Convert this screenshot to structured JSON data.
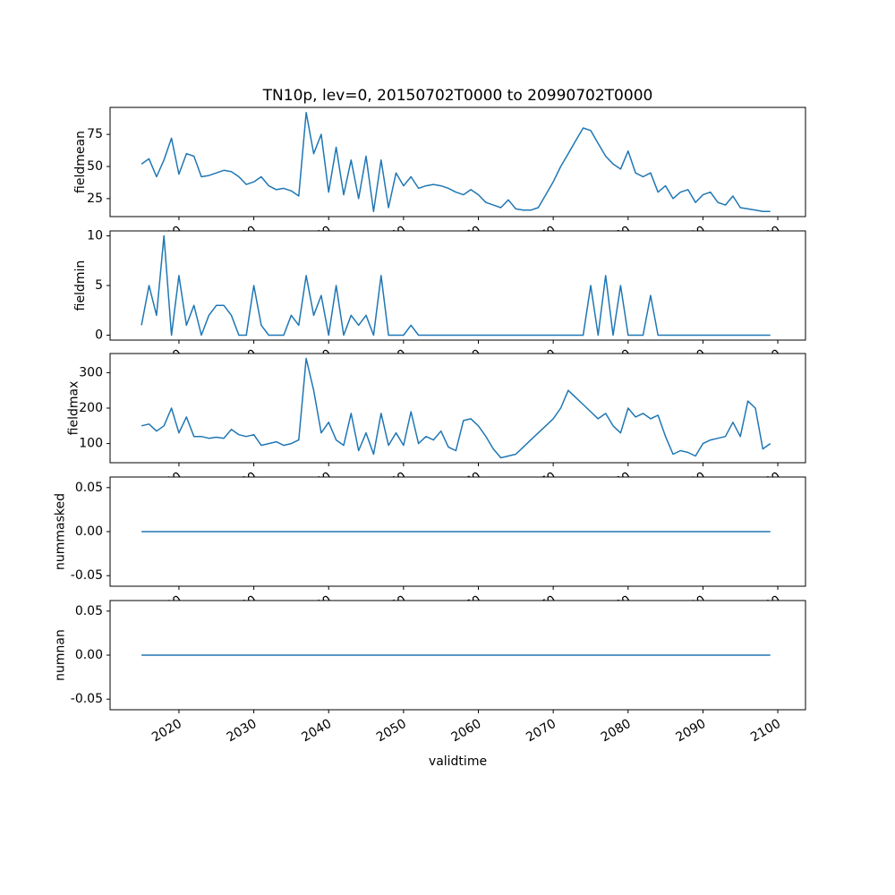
{
  "chart_data": {
    "type": "line",
    "title": "TN10p, lev=0, 20150702T0000 to 20990702T0000",
    "xlabel": "validtime",
    "line_color": "#1f77b4",
    "x_start": 2015,
    "x_end": 2099,
    "x_ticks": [
      2020,
      2030,
      2040,
      2050,
      2060,
      2070,
      2080,
      2090,
      2100
    ],
    "xlim": [
      2010.8,
      2103.7
    ],
    "grid": false,
    "legend": "none",
    "subplots": [
      {
        "name": "fieldmean",
        "ylabel": "fieldmean",
        "yticks": [
          25,
          50,
          75
        ],
        "ytick_labels": [
          "25",
          "50",
          "75"
        ],
        "ylim": [
          11,
          96
        ],
        "values": [
          52,
          56,
          42,
          55,
          72,
          44,
          60,
          58,
          42,
          43,
          45,
          47,
          46,
          42,
          36,
          38,
          42,
          35,
          32,
          33,
          31,
          27,
          92,
          60,
          75,
          30,
          65,
          28,
          55,
          25,
          58,
          15,
          55,
          18,
          45,
          35,
          42,
          33,
          35,
          36,
          35,
          33,
          30,
          28,
          32,
          28,
          22,
          20,
          18,
          24,
          17,
          16,
          16,
          18,
          28,
          38,
          50,
          60,
          70,
          80,
          78,
          68,
          58,
          52,
          48,
          62,
          45,
          42,
          45,
          30,
          35,
          25,
          30,
          32,
          22,
          28,
          30,
          22,
          20,
          27,
          18,
          17,
          16,
          15,
          15
        ]
      },
      {
        "name": "fieldmin",
        "ylabel": "fieldmin",
        "yticks": [
          0,
          5,
          10
        ],
        "ytick_labels": [
          "0",
          "5",
          "10"
        ],
        "ylim": [
          -0.5,
          10.5
        ],
        "values": [
          1,
          5,
          2,
          10,
          0,
          6,
          1,
          3,
          0,
          2,
          3,
          3,
          2,
          0,
          0,
          5,
          1,
          0,
          0,
          0,
          2,
          1,
          6,
          2,
          4,
          0,
          5,
          0,
          2,
          1,
          2,
          0,
          6,
          0,
          0,
          0,
          1,
          0,
          0,
          0,
          0,
          0,
          0,
          0,
          0,
          0,
          0,
          0,
          0,
          0,
          0,
          0,
          0,
          0,
          0,
          0,
          0,
          0,
          0,
          0,
          5,
          0,
          6,
          0,
          5,
          0,
          0,
          0,
          4,
          0,
          0,
          0,
          0,
          0,
          0,
          0,
          0,
          0,
          0,
          0,
          0,
          0,
          0,
          0,
          0
        ]
      },
      {
        "name": "fieldmax",
        "ylabel": "fieldmax",
        "yticks": [
          100,
          200,
          300
        ],
        "ytick_labels": [
          "100",
          "200",
          "300"
        ],
        "ylim": [
          46,
          354
        ],
        "values": [
          150,
          155,
          135,
          150,
          200,
          130,
          175,
          120,
          120,
          115,
          118,
          115,
          140,
          125,
          120,
          125,
          95,
          100,
          105,
          95,
          100,
          110,
          340,
          250,
          130,
          160,
          110,
          95,
          185,
          80,
          130,
          70,
          185,
          95,
          130,
          95,
          190,
          100,
          120,
          110,
          135,
          90,
          80,
          165,
          170,
          150,
          120,
          85,
          60,
          65,
          70,
          90,
          110,
          130,
          150,
          170,
          200,
          250,
          230,
          210,
          190,
          170,
          185,
          150,
          130,
          200,
          175,
          185,
          170,
          180,
          120,
          70,
          80,
          75,
          65,
          100,
          110,
          115,
          120,
          160,
          120,
          220,
          200,
          85,
          100
        ]
      },
      {
        "name": "nummasked",
        "ylabel": "nummasked",
        "yticks": [
          -0.05,
          0,
          0.05
        ],
        "ytick_labels": [
          "-0.05",
          "0.00",
          "0.05"
        ],
        "ylim": [
          -0.062,
          0.062
        ],
        "constant": 0
      },
      {
        "name": "numnan",
        "ylabel": "numnan",
        "yticks": [
          -0.05,
          0,
          0.05
        ],
        "ytick_labels": [
          "-0.05",
          "0.00",
          "0.05"
        ],
        "ylim": [
          -0.062,
          0.062
        ],
        "constant": 0
      }
    ]
  }
}
